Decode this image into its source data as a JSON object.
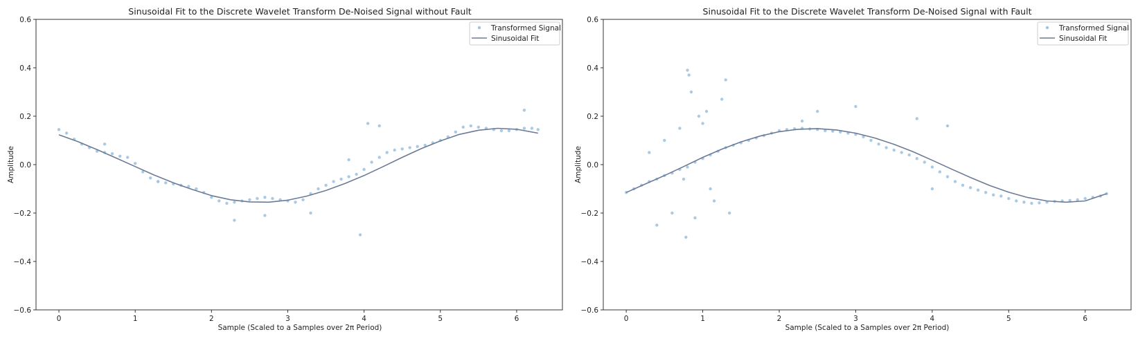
{
  "chart_data": [
    {
      "type": "scatter",
      "title": "Sinusoidal Fit to the Discrete Wavelet Transform De-Noised Signal without Fault",
      "xlabel": "Sample (Scaled to a Samples over 2π Period)",
      "ylabel": "Amplitude",
      "xlim": [
        -0.3,
        6.6
      ],
      "ylim": [
        -0.6,
        0.6
      ],
      "xticks": [
        0,
        1,
        2,
        3,
        4,
        5,
        6
      ],
      "yticks": [
        -0.6,
        -0.4,
        -0.2,
        0.0,
        0.2,
        0.4,
        0.6
      ],
      "xtick_labels": [
        "0",
        "1",
        "2",
        "3",
        "4",
        "5",
        "6"
      ],
      "ytick_labels": [
        "−0.6",
        "−0.4",
        "−0.2",
        "0.0",
        "0.2",
        "0.4",
        "0.6"
      ],
      "grid": false,
      "legend_position": "top-right",
      "series": [
        {
          "name": "Transformed Signal",
          "kind": "scatter",
          "color": "#9ec4e2",
          "x": [
            0.0,
            0.1,
            0.2,
            0.3,
            0.4,
            0.5,
            0.6,
            0.7,
            0.8,
            0.9,
            1.0,
            1.1,
            1.2,
            1.3,
            1.4,
            1.5,
            1.6,
            1.7,
            1.8,
            1.9,
            2.0,
            2.1,
            2.2,
            2.3,
            2.4,
            2.5,
            2.6,
            2.7,
            2.8,
            2.9,
            3.0,
            3.1,
            3.2,
            3.3,
            3.4,
            3.5,
            3.6,
            3.7,
            3.8,
            3.9,
            4.0,
            4.1,
            4.2,
            4.3,
            4.4,
            4.5,
            4.6,
            4.7,
            4.8,
            4.9,
            5.0,
            5.1,
            5.2,
            5.3,
            5.4,
            5.5,
            5.6,
            5.7,
            5.8,
            5.9,
            6.0,
            6.1,
            6.2,
            6.28,
            0.6,
            1.3,
            2.3,
            2.7,
            3.3,
            3.8,
            3.95,
            4.05,
            4.2,
            6.1
          ],
          "y": [
            0.145,
            0.13,
            0.105,
            0.085,
            0.07,
            0.055,
            0.05,
            0.045,
            0.035,
            0.03,
            0.005,
            -0.03,
            -0.055,
            -0.07,
            -0.075,
            -0.08,
            -0.085,
            -0.09,
            -0.1,
            -0.115,
            -0.135,
            -0.15,
            -0.16,
            -0.155,
            -0.15,
            -0.145,
            -0.14,
            -0.135,
            -0.14,
            -0.145,
            -0.15,
            -0.155,
            -0.145,
            -0.12,
            -0.1,
            -0.085,
            -0.07,
            -0.06,
            -0.05,
            -0.04,
            -0.02,
            0.01,
            0.03,
            0.05,
            0.06,
            0.065,
            0.07,
            0.075,
            0.08,
            0.09,
            0.1,
            0.115,
            0.135,
            0.155,
            0.16,
            0.155,
            0.15,
            0.145,
            0.14,
            0.14,
            0.145,
            0.15,
            0.15,
            0.145,
            0.085,
            -0.07,
            -0.23,
            -0.21,
            -0.2,
            0.02,
            -0.29,
            0.17,
            0.16,
            0.225
          ]
        },
        {
          "name": "Sinusoidal Fit",
          "kind": "line",
          "color": "#6b7a96",
          "x": [
            0.0,
            0.25,
            0.5,
            0.75,
            1.0,
            1.25,
            1.5,
            1.75,
            2.0,
            2.25,
            2.5,
            2.75,
            3.0,
            3.25,
            3.5,
            3.75,
            4.0,
            4.25,
            4.5,
            4.75,
            5.0,
            5.25,
            5.5,
            5.75,
            6.0,
            6.28
          ],
          "y": [
            0.123,
            0.095,
            0.062,
            0.027,
            -0.008,
            -0.043,
            -0.075,
            -0.103,
            -0.128,
            -0.145,
            -0.154,
            -0.155,
            -0.147,
            -0.13,
            -0.107,
            -0.078,
            -0.045,
            -0.008,
            0.03,
            0.066,
            0.098,
            0.125,
            0.142,
            0.15,
            0.146,
            0.13
          ]
        }
      ]
    },
    {
      "type": "scatter",
      "title": "Sinusoidal Fit to the Discrete Wavelet Transform De-Noised Signal with Fault",
      "xlabel": "Sample (Scaled to a Samples over 2π Period)",
      "ylabel": "Amplitude",
      "xlim": [
        -0.3,
        6.6
      ],
      "ylim": [
        -0.6,
        0.6
      ],
      "xticks": [
        0,
        1,
        2,
        3,
        4,
        5,
        6
      ],
      "yticks": [
        -0.6,
        -0.4,
        -0.2,
        0.0,
        0.2,
        0.4,
        0.6
      ],
      "xtick_labels": [
        "0",
        "1",
        "2",
        "3",
        "4",
        "5",
        "6"
      ],
      "ytick_labels": [
        "−0.6",
        "−0.4",
        "−0.2",
        "0.0",
        "0.2",
        "0.4",
        "0.6"
      ],
      "grid": false,
      "legend_position": "top-right",
      "series": [
        {
          "name": "Transformed Signal",
          "kind": "scatter",
          "color": "#9ec4e2",
          "x": [
            0.0,
            0.1,
            0.2,
            0.3,
            0.4,
            0.5,
            0.6,
            0.7,
            0.8,
            0.9,
            1.0,
            1.1,
            1.2,
            1.3,
            1.4,
            1.5,
            1.6,
            1.7,
            1.8,
            1.9,
            2.0,
            2.1,
            2.2,
            2.3,
            2.4,
            2.5,
            2.6,
            2.7,
            2.8,
            2.9,
            3.0,
            3.1,
            3.2,
            3.3,
            3.4,
            3.5,
            3.6,
            3.7,
            3.8,
            3.9,
            4.0,
            4.1,
            4.2,
            4.3,
            4.4,
            4.5,
            4.6,
            4.7,
            4.8,
            4.9,
            5.0,
            5.1,
            5.2,
            5.3,
            5.4,
            5.5,
            5.6,
            5.7,
            5.8,
            5.9,
            6.0,
            6.1,
            6.2,
            6.28,
            0.8,
            0.82,
            0.85,
            0.78,
            0.9,
            0.95,
            1.0,
            1.05,
            1.15,
            1.25,
            1.3,
            1.1,
            0.5,
            0.6,
            0.4,
            0.3,
            0.7,
            0.75,
            1.35,
            2.3,
            2.5,
            3.0,
            3.8,
            4.0,
            4.2
          ],
          "y": [
            -0.115,
            -0.1,
            -0.085,
            -0.07,
            -0.06,
            -0.045,
            -0.035,
            -0.02,
            -0.01,
            0.01,
            0.025,
            0.04,
            0.055,
            0.07,
            0.08,
            0.09,
            0.1,
            0.11,
            0.12,
            0.13,
            0.14,
            0.145,
            0.148,
            0.15,
            0.147,
            0.145,
            0.14,
            0.138,
            0.135,
            0.13,
            0.125,
            0.115,
            0.1,
            0.085,
            0.07,
            0.06,
            0.05,
            0.04,
            0.025,
            0.01,
            -0.01,
            -0.03,
            -0.05,
            -0.07,
            -0.085,
            -0.095,
            -0.105,
            -0.115,
            -0.125,
            -0.13,
            -0.14,
            -0.15,
            -0.155,
            -0.16,
            -0.158,
            -0.155,
            -0.152,
            -0.15,
            -0.148,
            -0.145,
            -0.14,
            -0.135,
            -0.13,
            -0.12,
            0.39,
            0.37,
            0.3,
            -0.3,
            -0.22,
            0.2,
            0.17,
            0.22,
            -0.15,
            0.27,
            0.35,
            -0.1,
            0.1,
            -0.2,
            -0.25,
            0.05,
            0.15,
            -0.06,
            -0.2,
            0.18,
            0.22,
            0.24,
            0.19,
            -0.1,
            0.16
          ]
        },
        {
          "name": "Sinusoidal Fit",
          "kind": "line",
          "color": "#6b7a96",
          "x": [
            0.0,
            0.25,
            0.5,
            0.75,
            1.0,
            1.25,
            1.5,
            1.75,
            2.0,
            2.25,
            2.5,
            2.75,
            3.0,
            3.25,
            3.5,
            3.75,
            4.0,
            4.25,
            4.5,
            4.75,
            5.0,
            5.25,
            5.5,
            5.75,
            6.0,
            6.28
          ],
          "y": [
            -0.115,
            -0.08,
            -0.045,
            -0.008,
            0.03,
            0.064,
            0.094,
            0.118,
            0.136,
            0.146,
            0.149,
            0.143,
            0.13,
            0.11,
            0.084,
            0.053,
            0.018,
            -0.018,
            -0.053,
            -0.086,
            -0.114,
            -0.136,
            -0.15,
            -0.155,
            -0.15,
            -0.12
          ]
        }
      ]
    }
  ]
}
